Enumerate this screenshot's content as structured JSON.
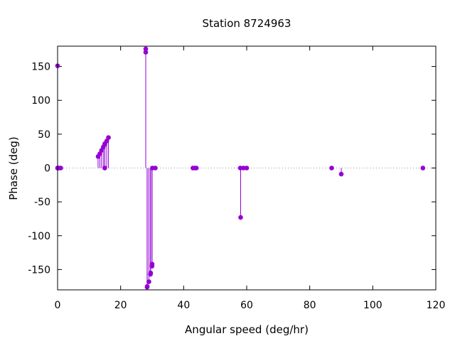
{
  "chart_data": {
    "type": "scatter",
    "style": "impulses-with-points",
    "title": "Station 8724963",
    "xlabel": "Angular speed (deg/hr)",
    "ylabel": "Phase (deg)",
    "xlim": [
      0,
      120
    ],
    "ylim": [
      -180,
      180
    ],
    "xticks": [
      0,
      20,
      40,
      60,
      80,
      100,
      120
    ],
    "yticks": [
      -150,
      -100,
      -50,
      0,
      50,
      100,
      150
    ],
    "xtick_labels": [
      "0",
      "20",
      "40",
      "60",
      "80",
      "100",
      "120"
    ],
    "ytick_labels": [
      "-150",
      "-100",
      "-50",
      "0",
      "50",
      "100",
      "150"
    ],
    "zero_line": "dotted",
    "grid": false,
    "color": "#9400d3",
    "series": [
      {
        "points": [
          [
            0.0,
            151
          ],
          [
            0.0,
            0
          ],
          [
            0.04,
            0
          ],
          [
            0.08,
            0
          ],
          [
            0.5,
            0
          ],
          [
            1.0,
            0
          ],
          [
            12.85,
            17
          ],
          [
            13.4,
            21
          ],
          [
            13.94,
            26
          ],
          [
            14.5,
            31
          ],
          [
            14.96,
            0
          ],
          [
            14.96,
            35
          ],
          [
            15.0,
            36
          ],
          [
            15.59,
            40
          ],
          [
            16.14,
            45
          ],
          [
            27.97,
            176
          ],
          [
            27.97,
            171
          ],
          [
            28.4,
            -176
          ],
          [
            28.44,
            -175
          ],
          [
            28.98,
            -168
          ],
          [
            29.46,
            -157
          ],
          [
            29.53,
            -155
          ],
          [
            29.96,
            -145
          ],
          [
            30.0,
            -142
          ],
          [
            30.08,
            0
          ],
          [
            31.0,
            0
          ],
          [
            42.93,
            0
          ],
          [
            43.48,
            0
          ],
          [
            44.03,
            0
          ],
          [
            57.97,
            0
          ],
          [
            58.08,
            -73
          ],
          [
            58.98,
            0
          ],
          [
            60.0,
            0
          ],
          [
            86.95,
            0
          ],
          [
            90.0,
            -9
          ],
          [
            115.9,
            0
          ]
        ]
      }
    ]
  }
}
